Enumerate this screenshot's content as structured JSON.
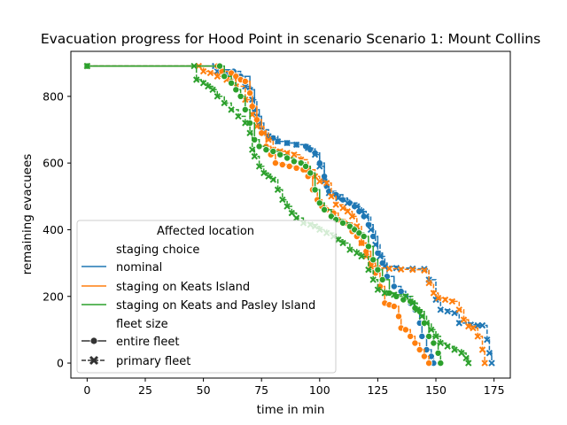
{
  "chart_data": {
    "type": "line",
    "title": "Evacuation progress for Hood Point in scenario Scenario 1: Mount Collins",
    "xlabel": "time in min",
    "ylabel": "remaining evacuees",
    "xlim": [
      -7,
      182
    ],
    "ylim": [
      -45,
      935
    ],
    "xticks": [
      0,
      25,
      50,
      75,
      100,
      125,
      150,
      175
    ],
    "yticks": [
      0,
      200,
      400,
      600,
      800
    ],
    "xtick_labels": [
      "0",
      "25",
      "50",
      "75",
      "100",
      "125",
      "150",
      "175"
    ],
    "ytick_labels": [
      "0",
      "200",
      "400",
      "600",
      "800"
    ],
    "grid": false,
    "legend": {
      "title": "Affected location",
      "placement": "lower left",
      "hue_title": "staging choice",
      "style_title": "fleet size",
      "hue_entries": [
        {
          "label": "nominal",
          "color": "#1f77b4"
        },
        {
          "label": "staging on Keats Island",
          "color": "#ff7f0e"
        },
        {
          "label": "staging on Keats and Pasley Island",
          "color": "#2ca02c"
        }
      ],
      "style_entries": [
        {
          "label": "entire fleet",
          "dash": "solid",
          "marker": "circle"
        },
        {
          "label": "primary fleet",
          "dash": "dashed",
          "marker": "x"
        }
      ]
    },
    "series": [
      {
        "name": "nominal",
        "fleet": "entire fleet",
        "color": "#1f77b4",
        "dash": "solid",
        "marker": "circle",
        "points": [
          [
            0,
            891
          ],
          [
            56,
            891
          ],
          [
            57,
            880
          ],
          [
            63,
            875
          ],
          [
            66,
            860
          ],
          [
            70,
            820
          ],
          [
            72,
            760
          ],
          [
            74,
            720
          ],
          [
            76,
            690
          ],
          [
            78,
            680
          ],
          [
            80,
            675
          ],
          [
            82,
            665
          ],
          [
            86,
            660
          ],
          [
            90,
            655
          ],
          [
            94,
            650
          ],
          [
            96,
            640
          ],
          [
            98,
            630
          ],
          [
            100,
            600
          ],
          [
            102,
            560
          ],
          [
            103,
            530
          ],
          [
            104,
            515
          ],
          [
            107,
            505
          ],
          [
            110,
            490
          ],
          [
            113,
            480
          ],
          [
            115,
            470
          ],
          [
            117,
            455
          ],
          [
            119,
            440
          ],
          [
            121,
            415
          ],
          [
            123,
            380
          ],
          [
            125,
            330
          ],
          [
            127,
            300
          ],
          [
            129,
            260
          ],
          [
            132,
            230
          ],
          [
            135,
            215
          ],
          [
            137,
            200
          ],
          [
            139,
            180
          ],
          [
            141,
            160
          ],
          [
            143,
            120
          ],
          [
            144,
            80
          ],
          [
            146,
            40
          ],
          [
            148,
            20
          ],
          [
            149,
            0
          ]
        ]
      },
      {
        "name": "nominal",
        "fleet": "primary fleet",
        "color": "#1f77b4",
        "dash": "dashed",
        "marker": "x",
        "points": [
          [
            0,
            891
          ],
          [
            55,
            891
          ],
          [
            56,
            875
          ],
          [
            60,
            870
          ],
          [
            64,
            860
          ],
          [
            68,
            830
          ],
          [
            71,
            790
          ],
          [
            73,
            740
          ],
          [
            75,
            700
          ],
          [
            78,
            680
          ],
          [
            82,
            665
          ],
          [
            86,
            660
          ],
          [
            90,
            655
          ],
          [
            95,
            645
          ],
          [
            98,
            625
          ],
          [
            100,
            590
          ],
          [
            102,
            545
          ],
          [
            104,
            510
          ],
          [
            108,
            495
          ],
          [
            112,
            480
          ],
          [
            116,
            470
          ],
          [
            118,
            455
          ],
          [
            120,
            440
          ],
          [
            122,
            400
          ],
          [
            124,
            355
          ],
          [
            126,
            320
          ],
          [
            128,
            290
          ],
          [
            133,
            285
          ],
          [
            140,
            283
          ],
          [
            145,
            282
          ],
          [
            147,
            250
          ],
          [
            150,
            190
          ],
          [
            152,
            160
          ],
          [
            155,
            155
          ],
          [
            158,
            150
          ],
          [
            160,
            120
          ],
          [
            165,
            115
          ],
          [
            168,
            113
          ],
          [
            170,
            113
          ],
          [
            172,
            70
          ],
          [
            173,
            30
          ],
          [
            174,
            0
          ]
        ]
      },
      {
        "name": "staging on Keats Island",
        "fleet": "entire fleet",
        "color": "#ff7f0e",
        "dash": "solid",
        "marker": "circle",
        "points": [
          [
            0,
            891
          ],
          [
            56,
            891
          ],
          [
            58,
            875
          ],
          [
            62,
            870
          ],
          [
            64,
            860
          ],
          [
            66,
            850
          ],
          [
            68,
            845
          ],
          [
            70,
            810
          ],
          [
            71,
            770
          ],
          [
            73,
            730
          ],
          [
            75,
            690
          ],
          [
            77,
            650
          ],
          [
            79,
            625
          ],
          [
            81,
            600
          ],
          [
            84,
            595
          ],
          [
            87,
            590
          ],
          [
            90,
            585
          ],
          [
            93,
            580
          ],
          [
            95,
            560
          ],
          [
            97,
            520
          ],
          [
            99,
            490
          ],
          [
            101,
            470
          ],
          [
            103,
            460
          ],
          [
            106,
            450
          ],
          [
            108,
            430
          ],
          [
            111,
            420
          ],
          [
            114,
            395
          ],
          [
            116,
            380
          ],
          [
            118,
            360
          ],
          [
            120,
            335
          ],
          [
            122,
            300
          ],
          [
            124,
            270
          ],
          [
            126,
            230
          ],
          [
            128,
            180
          ],
          [
            130,
            175
          ],
          [
            132,
            170
          ],
          [
            134,
            140
          ],
          [
            135,
            105
          ],
          [
            137,
            100
          ],
          [
            139,
            80
          ],
          [
            141,
            60
          ],
          [
            143,
            40
          ],
          [
            145,
            20
          ],
          [
            147,
            0
          ]
        ]
      },
      {
        "name": "staging on Keats Island",
        "fleet": "primary fleet",
        "color": "#ff7f0e",
        "dash": "dashed",
        "marker": "x",
        "points": [
          [
            0,
            891
          ],
          [
            48,
            891
          ],
          [
            50,
            875
          ],
          [
            53,
            870
          ],
          [
            56,
            860
          ],
          [
            60,
            850
          ],
          [
            64,
            830
          ],
          [
            68,
            790
          ],
          [
            71,
            745
          ],
          [
            73,
            710
          ],
          [
            76,
            690
          ],
          [
            78,
            670
          ],
          [
            80,
            640
          ],
          [
            83,
            635
          ],
          [
            86,
            630
          ],
          [
            89,
            625
          ],
          [
            92,
            610
          ],
          [
            95,
            580
          ],
          [
            98,
            560
          ],
          [
            100,
            545
          ],
          [
            103,
            540
          ],
          [
            105,
            500
          ],
          [
            107,
            475
          ],
          [
            110,
            465
          ],
          [
            112,
            455
          ],
          [
            114,
            440
          ],
          [
            116,
            410
          ],
          [
            118,
            360
          ],
          [
            120,
            320
          ],
          [
            122,
            290
          ],
          [
            125,
            285
          ],
          [
            130,
            283
          ],
          [
            135,
            281
          ],
          [
            140,
            280
          ],
          [
            145,
            278
          ],
          [
            147,
            240
          ],
          [
            149,
            210
          ],
          [
            151,
            195
          ],
          [
            154,
            190
          ],
          [
            157,
            185
          ],
          [
            160,
            160
          ],
          [
            162,
            130
          ],
          [
            164,
            110
          ],
          [
            166,
            105
          ],
          [
            168,
            80
          ],
          [
            170,
            40
          ],
          [
            171,
            0
          ]
        ]
      },
      {
        "name": "staging on Keats and Pasley Island",
        "fleet": "entire fleet",
        "color": "#2ca02c",
        "dash": "solid",
        "marker": "circle",
        "points": [
          [
            0,
            891
          ],
          [
            57,
            891
          ],
          [
            59,
            860
          ],
          [
            62,
            840
          ],
          [
            64,
            820
          ],
          [
            66,
            800
          ],
          [
            68,
            760
          ],
          [
            70,
            720
          ],
          [
            72,
            670
          ],
          [
            74,
            650
          ],
          [
            77,
            640
          ],
          [
            80,
            635
          ],
          [
            83,
            625
          ],
          [
            86,
            615
          ],
          [
            89,
            605
          ],
          [
            92,
            600
          ],
          [
            94,
            590
          ],
          [
            96,
            570
          ],
          [
            98,
            520
          ],
          [
            100,
            480
          ],
          [
            102,
            460
          ],
          [
            105,
            440
          ],
          [
            107,
            430
          ],
          [
            110,
            420
          ],
          [
            113,
            410
          ],
          [
            115,
            400
          ],
          [
            117,
            390
          ],
          [
            119,
            380
          ],
          [
            121,
            350
          ],
          [
            123,
            310
          ],
          [
            125,
            280
          ],
          [
            127,
            250
          ],
          [
            130,
            210
          ],
          [
            133,
            200
          ],
          [
            136,
            190
          ],
          [
            139,
            185
          ],
          [
            141,
            165
          ],
          [
            143,
            155
          ],
          [
            145,
            120
          ],
          [
            147,
            80
          ],
          [
            149,
            60
          ],
          [
            151,
            30
          ],
          [
            152,
            0
          ]
        ]
      },
      {
        "name": "staging on Keats and Pasley Island",
        "fleet": "primary fleet",
        "color": "#2ca02c",
        "dash": "dashed",
        "marker": "x",
        "points": [
          [
            0,
            891
          ],
          [
            46,
            891
          ],
          [
            47,
            850
          ],
          [
            50,
            840
          ],
          [
            52,
            830
          ],
          [
            54,
            820
          ],
          [
            56,
            800
          ],
          [
            59,
            780
          ],
          [
            62,
            760
          ],
          [
            65,
            740
          ],
          [
            68,
            720
          ],
          [
            70,
            690
          ],
          [
            71,
            640
          ],
          [
            72,
            620
          ],
          [
            74,
            590
          ],
          [
            76,
            570
          ],
          [
            78,
            560
          ],
          [
            80,
            550
          ],
          [
            82,
            520
          ],
          [
            84,
            490
          ],
          [
            86,
            470
          ],
          [
            88,
            450
          ],
          [
            90,
            435
          ],
          [
            93,
            420
          ],
          [
            96,
            415
          ],
          [
            98,
            410
          ],
          [
            100,
            400
          ],
          [
            103,
            390
          ],
          [
            106,
            380
          ],
          [
            108,
            370
          ],
          [
            110,
            360
          ],
          [
            113,
            340
          ],
          [
            116,
            330
          ],
          [
            118,
            320
          ],
          [
            121,
            280
          ],
          [
            123,
            250
          ],
          [
            125,
            220
          ],
          [
            128,
            210
          ],
          [
            132,
            205
          ],
          [
            137,
            200
          ],
          [
            140,
            180
          ],
          [
            142,
            160
          ],
          [
            144,
            140
          ],
          [
            146,
            120
          ],
          [
            148,
            100
          ],
          [
            150,
            80
          ],
          [
            152,
            60
          ],
          [
            155,
            50
          ],
          [
            158,
            40
          ],
          [
            161,
            30
          ],
          [
            163,
            15
          ],
          [
            164,
            0
          ]
        ]
      }
    ]
  }
}
